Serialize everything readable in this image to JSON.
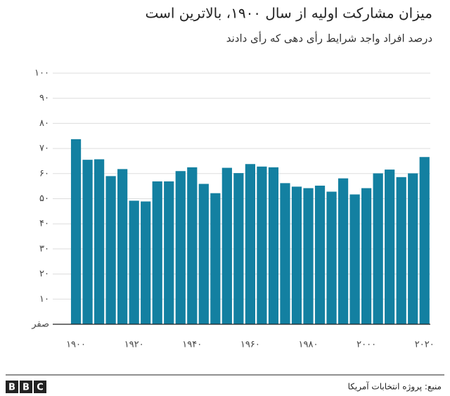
{
  "chart_data": {
    "type": "bar",
    "title": "میزان مشارکت اولیه  از سال ۱۹۰۰، بالاترین است",
    "subtitle": "درصد افراد واجد شرایط رأی دهی که  رأی دادند",
    "x": [
      1900,
      1904,
      1908,
      1912,
      1916,
      1920,
      1924,
      1928,
      1932,
      1936,
      1940,
      1944,
      1948,
      1952,
      1956,
      1960,
      1964,
      1968,
      1972,
      1976,
      1980,
      1984,
      1988,
      1992,
      1996,
      2000,
      2004,
      2008,
      2012,
      2016,
      2020
    ],
    "values": [
      73.7,
      65.5,
      65.7,
      59,
      61.8,
      49.2,
      48.9,
      56.9,
      56.9,
      61,
      62.5,
      55.9,
      52.2,
      62.3,
      60.2,
      63.8,
      62.8,
      62.5,
      56.2,
      54.8,
      54.2,
      55.2,
      52.8,
      58.1,
      51.7,
      54.2,
      60.1,
      61.6,
      58.6,
      60.1,
      66.6
    ],
    "color": "#1380a1",
    "xlim": [
      1892,
      2022
    ],
    "xticks": [
      {
        "value": 1900,
        "label": "۱۹۰۰"
      },
      {
        "value": 1920,
        "label": "۱۹۲۰"
      },
      {
        "value": 1940,
        "label": "۱۹۴۰"
      },
      {
        "value": 1960,
        "label": "۱۹۶۰"
      },
      {
        "value": 1980,
        "label": "۱۹۸۰"
      },
      {
        "value": 2000,
        "label": "۲۰۰۰"
      },
      {
        "value": 2020,
        "label": "۲۰۲۰"
      }
    ],
    "ylim": [
      0,
      100
    ],
    "yticks": [
      {
        "value": 0,
        "label": "صفر"
      },
      {
        "value": 10,
        "label": "۱۰"
      },
      {
        "value": 20,
        "label": "۲۰"
      },
      {
        "value": 30,
        "label": "۳۰"
      },
      {
        "value": 40,
        "label": "۴۰"
      },
      {
        "value": 50,
        "label": "۵۰"
      },
      {
        "value": 60,
        "label": "۶۰"
      },
      {
        "value": 70,
        "label": "۷۰"
      },
      {
        "value": 80,
        "label": "۸۰"
      },
      {
        "value": 90,
        "label": "۹۰"
      },
      {
        "value": 100,
        "label": "۱۰۰"
      }
    ],
    "grid": true,
    "source": "منبع: پروژه انتخابات آمریکا",
    "logo": [
      "B",
      "B",
      "C"
    ]
  }
}
